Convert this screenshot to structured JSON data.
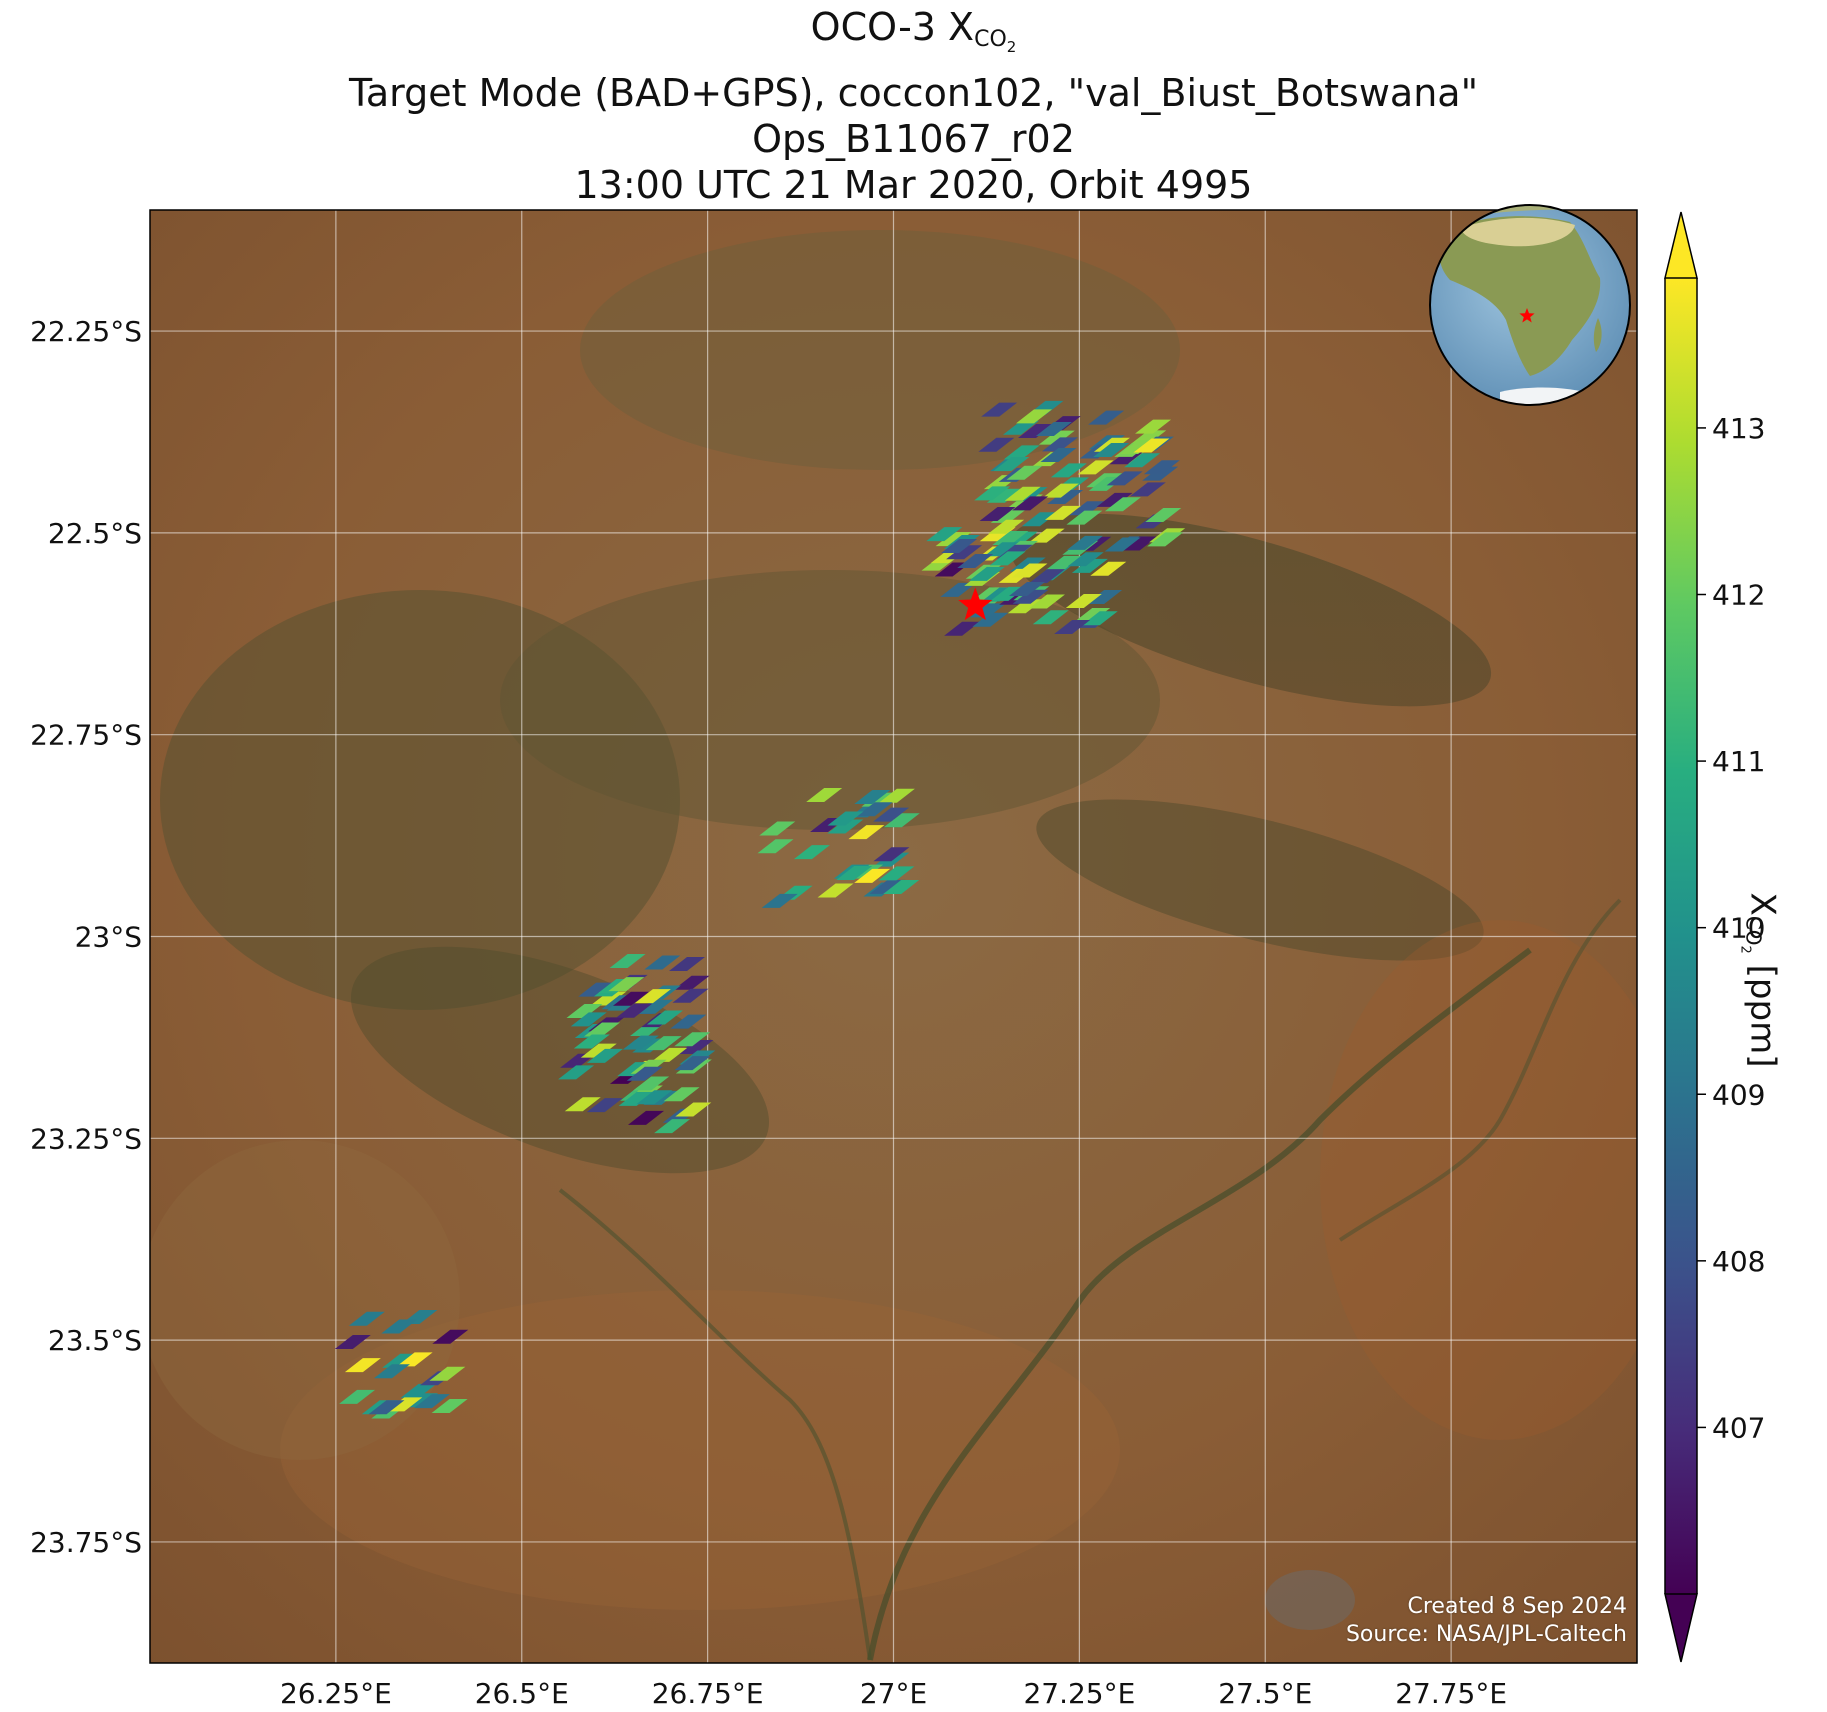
{
  "title": {
    "line1_prefix": "OCO-3 X",
    "line1_sub": "CO",
    "line1_sub2": "2",
    "line2": "Target Mode (BAD+GPS), coccon102, \"val_Biust_Botswana\"",
    "line3": "Ops_B11067_r02",
    "line4": "13:00 UTC 21 Mar 2020, Orbit 4995"
  },
  "map": {
    "lon_range": [
      26.0,
      28.0
    ],
    "lat_range": [
      -23.9,
      -22.1
    ],
    "x_ticks": [
      {
        "value": 26.25,
        "label": "26.25°E"
      },
      {
        "value": 26.5,
        "label": "26.5°E"
      },
      {
        "value": 26.75,
        "label": "26.75°E"
      },
      {
        "value": 27.0,
        "label": "27°E"
      },
      {
        "value": 27.25,
        "label": "27.25°E"
      },
      {
        "value": 27.5,
        "label": "27.5°E"
      },
      {
        "value": 27.75,
        "label": "27.75°E"
      }
    ],
    "y_ticks": [
      {
        "value": -22.25,
        "label": "22.25°S"
      },
      {
        "value": -22.5,
        "label": "22.5°S"
      },
      {
        "value": -22.75,
        "label": "22.75°S"
      },
      {
        "value": -23.0,
        "label": "23°S"
      },
      {
        "value": -23.25,
        "label": "23.25°S"
      },
      {
        "value": -23.5,
        "label": "23.5°S"
      },
      {
        "value": -23.75,
        "label": "23.75°S"
      }
    ],
    "grid": true,
    "target_marker": {
      "lon": 27.11,
      "lat": -22.59,
      "color": "#ff0000",
      "shape": "star"
    },
    "inset_globe": {
      "position": "top-right",
      "marker_color": "#ff0000"
    }
  },
  "colorbar": {
    "label_prefix": "X",
    "label_sub": "CO",
    "label_sub2": "2",
    "label_suffix": " [ppm]",
    "min": 406.0,
    "max": 413.9,
    "extend": "both",
    "ticks": [
      {
        "value": 407,
        "label": "407"
      },
      {
        "value": 408,
        "label": "408"
      },
      {
        "value": 409,
        "label": "409"
      },
      {
        "value": 410,
        "label": "410"
      },
      {
        "value": 411,
        "label": "411"
      },
      {
        "value": 412,
        "label": "412"
      },
      {
        "value": 413,
        "label": "413"
      }
    ],
    "colormap": "viridis"
  },
  "footer": {
    "created": "Created 8 Sep 2024",
    "source": "Source: NASA/JPL-Caltech"
  },
  "chart_data": {
    "type": "scatter",
    "xlabel": "",
    "ylabel": "",
    "xlim": [
      26.0,
      28.0
    ],
    "ylim": [
      -23.9,
      -22.1
    ],
    "clusters": [
      {
        "lon": 27.25,
        "lat": -22.43,
        "spread_lon": 0.12,
        "spread_lat": 0.09,
        "n": 70,
        "seed": 11
      },
      {
        "lon": 27.17,
        "lat": -22.56,
        "spread_lon": 0.12,
        "spread_lat": 0.06,
        "n": 50,
        "seed": 23
      },
      {
        "lon": 26.93,
        "lat": -22.89,
        "spread_lon": 0.09,
        "spread_lat": 0.07,
        "n": 28,
        "seed": 37
      },
      {
        "lon": 26.66,
        "lat": -23.14,
        "spread_lon": 0.09,
        "spread_lat": 0.11,
        "n": 60,
        "seed": 41
      },
      {
        "lon": 26.35,
        "lat": -23.53,
        "spread_lon": 0.08,
        "spread_lat": 0.06,
        "n": 20,
        "seed": 53
      }
    ],
    "value_range_ppm": [
      406.0,
      413.9
    ]
  }
}
